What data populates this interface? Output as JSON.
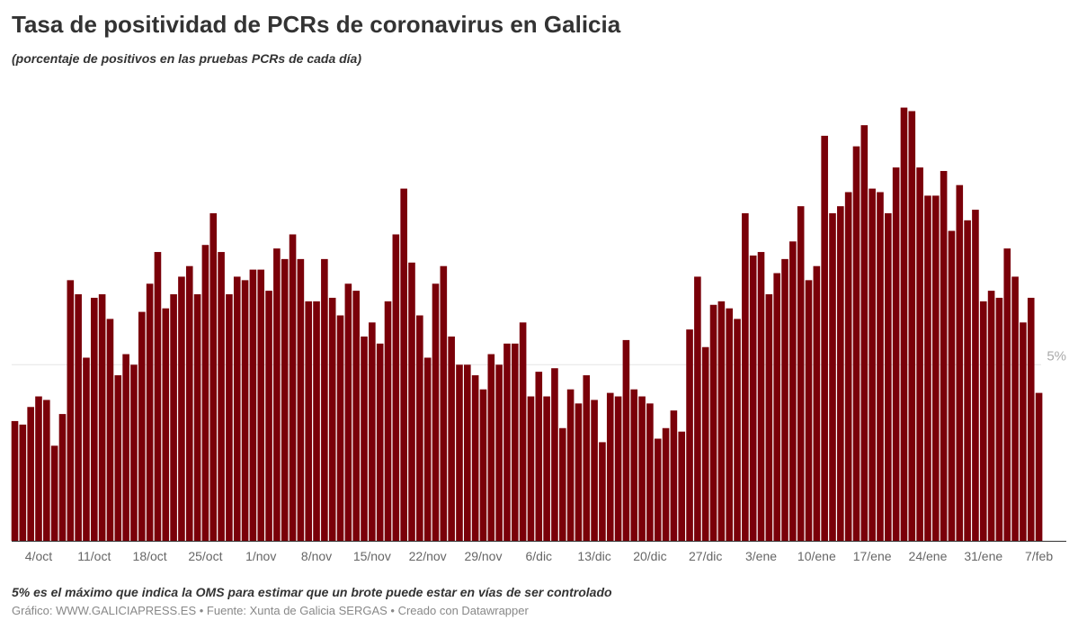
{
  "header": {
    "title": "Tasa de positividad de PCRs de coronavirus en Galicia",
    "subtitle": "(porcentaje de positivos en las pruebas PCRs de cada día)"
  },
  "footer": {
    "note": "5% es el máximo que indica la OMS para estimar que un brote puede estar en vías de ser controlado",
    "source": "Gráfico: WWW.GALICIAPRESS.ES • Fuente: Xunta de Galicia SERGAS • Creado con Datawrapper"
  },
  "chart_data": {
    "type": "bar",
    "title": "Tasa de positividad de PCRs de coronavirus en Galicia",
    "subtitle": "(porcentaje de positivos en las pruebas PCRs de cada día)",
    "x_range": [
      "1/oct",
      "7/feb"
    ],
    "x_ticks": [
      "4/oct",
      "11/oct",
      "18/oct",
      "25/oct",
      "1/nov",
      "8/nov",
      "15/nov",
      "22/nov",
      "29/nov",
      "6/dic",
      "13/dic",
      "20/dic",
      "27/dic",
      "3/ene",
      "10/ene",
      "17/ene",
      "24/ene",
      "31/ene",
      "7/feb"
    ],
    "x_tick_positions": [
      3,
      10,
      17,
      24,
      31,
      38,
      45,
      52,
      59,
      66,
      73,
      80,
      87,
      94,
      101,
      108,
      115,
      122,
      129
    ],
    "y_gridlines": [
      {
        "value": 5,
        "label": "5%"
      }
    ],
    "ylim": [
      0,
      12.8
    ],
    "color": "#7a0009",
    "values": [
      3.4,
      3.3,
      3.8,
      4.1,
      4.0,
      2.7,
      3.6,
      7.4,
      7.0,
      5.2,
      6.9,
      7.0,
      6.3,
      4.7,
      5.3,
      5.0,
      6.5,
      7.3,
      8.2,
      6.6,
      7.0,
      7.5,
      7.8,
      7.0,
      8.4,
      9.3,
      8.2,
      7.0,
      7.5,
      7.4,
      7.7,
      7.7,
      7.1,
      8.3,
      8.0,
      8.7,
      8.0,
      6.8,
      6.8,
      8.0,
      6.9,
      6.4,
      7.3,
      7.1,
      5.8,
      6.2,
      5.6,
      6.8,
      8.7,
      10.0,
      7.9,
      6.4,
      5.2,
      7.3,
      7.8,
      5.8,
      5.0,
      5.0,
      4.7,
      4.3,
      5.3,
      5.0,
      5.6,
      5.6,
      6.2,
      4.1,
      4.8,
      4.1,
      4.9,
      3.2,
      4.3,
      3.9,
      4.7,
      4.0,
      2.8,
      4.2,
      4.1,
      5.7,
      4.3,
      4.1,
      3.9,
      2.9,
      3.2,
      3.7,
      3.1,
      6.0,
      7.5,
      5.5,
      6.7,
      6.8,
      6.6,
      6.3,
      9.3,
      8.1,
      8.2,
      7.0,
      7.6,
      8.0,
      8.5,
      9.5,
      7.4,
      7.8,
      11.5,
      9.3,
      9.5,
      9.9,
      11.2,
      11.8,
      10.0,
      9.9,
      9.3,
      10.6,
      12.3,
      12.2,
      10.6,
      9.8,
      9.8,
      10.5,
      8.8,
      10.1,
      9.1,
      9.4,
      6.8,
      7.1,
      6.9,
      8.3,
      7.5,
      6.2,
      6.9,
      4.2
    ]
  }
}
